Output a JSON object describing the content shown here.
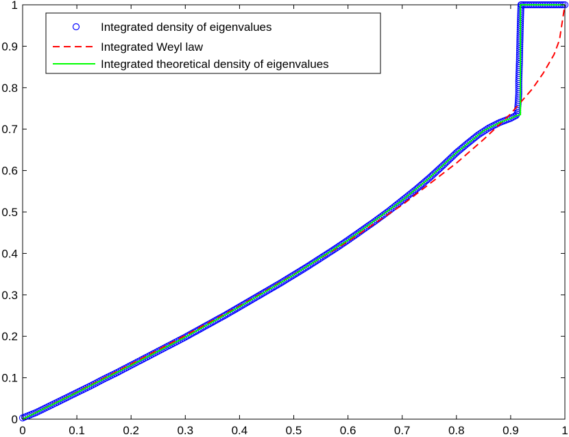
{
  "chart_data": {
    "type": "line",
    "title": "",
    "xlabel": "",
    "ylabel": "",
    "xlim": [
      0,
      1
    ],
    "ylim": [
      0,
      1
    ],
    "x_ticks": [
      "0",
      "0.1",
      "0.2",
      "0.3",
      "0.4",
      "0.5",
      "0.6",
      "0.7",
      "0.8",
      "0.9",
      "1"
    ],
    "y_ticks": [
      "0",
      "0.1",
      "0.2",
      "0.3",
      "0.4",
      "0.5",
      "0.6",
      "0.7",
      "0.8",
      "0.9",
      "1"
    ],
    "grid": false,
    "legend_position": "top-left",
    "series": [
      {
        "name": "Integrated density of eigenvalues",
        "style": "circle-markers",
        "color": "#0000ff",
        "x": [
          0,
          0.025,
          0.05,
          0.075,
          0.1,
          0.125,
          0.15,
          0.175,
          0.2,
          0.225,
          0.25,
          0.275,
          0.3,
          0.325,
          0.35,
          0.375,
          0.4,
          0.425,
          0.45,
          0.475,
          0.5,
          0.525,
          0.55,
          0.575,
          0.6,
          0.625,
          0.65,
          0.675,
          0.7,
          0.725,
          0.75,
          0.775,
          0.8,
          0.82,
          0.84,
          0.86,
          0.88,
          0.9,
          0.91,
          0.913,
          0.913,
          0.914,
          0.915,
          0.915,
          0.916,
          0.917,
          0.918,
          0.919,
          0.92,
          0.93,
          0.94,
          0.95,
          0.96,
          0.97,
          0.98,
          0.99,
          1.0
        ],
        "y": [
          0.003,
          0.016,
          0.032,
          0.048,
          0.064,
          0.08,
          0.097,
          0.113,
          0.13,
          0.147,
          0.164,
          0.181,
          0.198,
          0.216,
          0.234,
          0.252,
          0.271,
          0.29,
          0.309,
          0.328,
          0.348,
          0.368,
          0.389,
          0.41,
          0.432,
          0.455,
          0.478,
          0.502,
          0.528,
          0.554,
          0.582,
          0.612,
          0.643,
          0.665,
          0.686,
          0.703,
          0.716,
          0.726,
          0.733,
          0.74,
          0.75,
          0.765,
          0.785,
          0.815,
          0.858,
          0.91,
          0.96,
          1.0,
          1.0,
          1.0,
          1.0,
          1.0,
          1.0,
          1.0,
          1.0,
          1.0,
          1.0
        ]
      },
      {
        "name": "Integrated Weyl law",
        "style": "dashed",
        "color": "#ff0000",
        "x": [
          0,
          0.1,
          0.2,
          0.3,
          0.4,
          0.5,
          0.6,
          0.7,
          0.8,
          0.85,
          0.9,
          0.92,
          0.94,
          0.96,
          0.98,
          0.99,
          1.0
        ],
        "y": [
          0,
          0.065,
          0.133,
          0.202,
          0.273,
          0.349,
          0.429,
          0.517,
          0.618,
          0.675,
          0.737,
          0.767,
          0.797,
          0.835,
          0.88,
          0.915,
          1.0
        ]
      },
      {
        "name": "Integrated theoretical density of eigenvalues",
        "style": "solid",
        "color": "#00ff00",
        "x": [
          0,
          0.1,
          0.2,
          0.3,
          0.4,
          0.5,
          0.6,
          0.7,
          0.75,
          0.8,
          0.85,
          0.88,
          0.9,
          0.912,
          0.918,
          0.918,
          1.0
        ],
        "y": [
          0,
          0.064,
          0.13,
          0.198,
          0.271,
          0.348,
          0.432,
          0.528,
          0.582,
          0.643,
          0.696,
          0.716,
          0.726,
          0.733,
          0.735,
          1.0,
          1.0
        ]
      }
    ]
  }
}
